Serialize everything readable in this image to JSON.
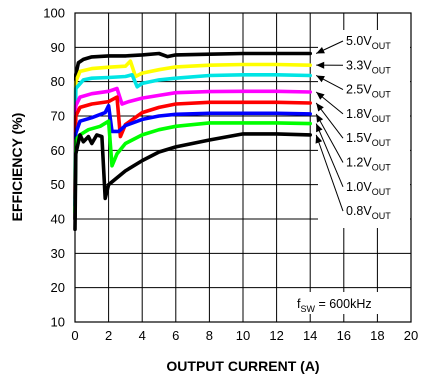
{
  "chart_data": {
    "type": "line",
    "title": "",
    "xlabel": "OUTPUT CURRENT (A)",
    "ylabel": "EFFICIENCY (%)",
    "xlim": [
      0,
      20
    ],
    "ylim": [
      10,
      100
    ],
    "xticks": [
      0,
      2,
      4,
      6,
      8,
      10,
      12,
      14,
      16,
      18,
      20
    ],
    "yticks": [
      10,
      20,
      30,
      40,
      50,
      60,
      70,
      80,
      90,
      100
    ],
    "grid": true,
    "annotation": {
      "prefix": "f",
      "sub": "SW",
      "suffix": " = 600kHz"
    },
    "series": [
      {
        "label_main": "5.0V",
        "label_sub": "OUT",
        "color": "#000000",
        "x": [
          0,
          0.05,
          0.2,
          0.5,
          1.0,
          2.0,
          3.0,
          4.0,
          5.0,
          5.5,
          6.0,
          8.0,
          10.0,
          12.0,
          14.0
        ],
        "y": [
          40,
          82,
          85.5,
          86.5,
          87.2,
          87.5,
          87.5,
          87.8,
          88.2,
          87.3,
          87.8,
          88.0,
          88.2,
          88.2,
          88.2
        ]
      },
      {
        "label_main": "3.3V",
        "label_sub": "OUT",
        "color": "#ffff00",
        "x": [
          0,
          0.05,
          0.3,
          1.0,
          2.0,
          3.0,
          3.3,
          3.6,
          4.0,
          5.0,
          6.0,
          8.0,
          10.0,
          12.0,
          14.0
        ],
        "y": [
          48,
          80,
          83,
          83.8,
          84.2,
          84.5,
          86,
          81.5,
          82.5,
          83.5,
          84.3,
          84.8,
          85.0,
          85.0,
          84.8
        ]
      },
      {
        "label_main": "2.5V",
        "label_sub": "OUT",
        "color": "#00e5e5",
        "x": [
          0,
          0.05,
          0.5,
          1.0,
          2.0,
          3.0,
          3.4,
          3.7,
          4.0,
          5.0,
          6.0,
          8.0,
          10.0,
          12.0,
          14.0
        ],
        "y": [
          50,
          78,
          80.5,
          81,
          81.2,
          81.5,
          82,
          78.5,
          79.5,
          80.5,
          81,
          81.8,
          82,
          82,
          81.8
        ]
      },
      {
        "label_main": "1.8V",
        "label_sub": "OUT",
        "color": "#ff00ff",
        "x": [
          0,
          0.05,
          0.3,
          1.0,
          2.0,
          2.5,
          2.8,
          3.2,
          4.0,
          5.0,
          6.0,
          8.0,
          10.0,
          12.0,
          14.0
        ],
        "y": [
          48,
          73,
          75.5,
          76.5,
          77.2,
          78,
          73.5,
          74.2,
          75.2,
          76,
          76.8,
          77.1,
          77.2,
          77.2,
          77.0
        ]
      },
      {
        "label_main": "1.5V",
        "label_sub": "OUT",
        "color": "#ff0000",
        "x": [
          0,
          0.05,
          0.3,
          1.0,
          2.0,
          2.5,
          2.7,
          3.0,
          4.0,
          5.0,
          6.0,
          8.0,
          10.0,
          12.0,
          14.0
        ],
        "y": [
          46,
          70,
          72.5,
          73.5,
          74.2,
          75.5,
          64,
          67.5,
          71,
          72.5,
          73.5,
          74,
          74,
          74,
          73.8
        ]
      },
      {
        "label_main": "1.2V",
        "label_sub": "OUT",
        "color": "#0000ff",
        "x": [
          0,
          0.05,
          0.3,
          1.0,
          1.8,
          2.0,
          2.2,
          2.6,
          3.0,
          4.0,
          5.0,
          6.0,
          8.0,
          10.0,
          12.0,
          14.0
        ],
        "y": [
          44,
          65,
          68.5,
          69.5,
          71,
          73,
          65.5,
          65.5,
          67.2,
          69,
          70,
          70.5,
          70.8,
          70.8,
          70.8,
          70.6
        ]
      },
      {
        "label_main": "1.0V",
        "label_sub": "OUT",
        "color": "#00ff00",
        "x": [
          0,
          0.05,
          0.3,
          0.8,
          1.5,
          2.0,
          2.2,
          2.5,
          3.0,
          4.0,
          5.0,
          6.0,
          8.0,
          10.0,
          12.0,
          14.0
        ],
        "y": [
          42,
          63,
          64.5,
          66,
          67,
          68.5,
          55.5,
          59,
          62,
          64.5,
          66,
          67,
          68,
          68,
          68,
          67.8
        ]
      },
      {
        "label_main": "0.8V",
        "label_sub": "OUT",
        "color": "#000000",
        "x": [
          0,
          0.05,
          0.3,
          0.5,
          0.8,
          1.0,
          1.3,
          1.6,
          1.8,
          1.9,
          2.0,
          3.0,
          4.0,
          5.0,
          6.0,
          8.0,
          10.0,
          12.0,
          14.0
        ],
        "y": [
          37,
          59,
          64.5,
          62.5,
          64,
          62,
          64.5,
          64,
          46,
          48,
          50,
          54,
          57,
          59.5,
          61,
          63,
          64.8,
          64.8,
          64.5
        ]
      }
    ]
  }
}
